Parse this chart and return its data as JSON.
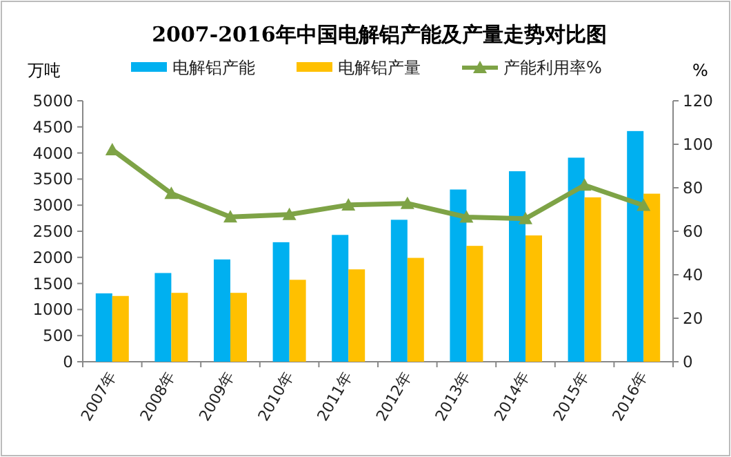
{
  "chart_data": {
    "type": "bar",
    "title": "2007-2016年中国电解铝产能及产量走势对比图",
    "ylabel": "万吨",
    "y2label": "%",
    "categories": [
      "2007年",
      "2008年",
      "2009年",
      "2010年",
      "2011年",
      "2012年",
      "2013年",
      "2014年",
      "2015年",
      "2016年"
    ],
    "series": [
      {
        "name": "电解铝产能",
        "color": "#00b0f0",
        "values": [
          1310,
          1700,
          1960,
          2290,
          2430,
          2720,
          3300,
          3650,
          3910,
          4420
        ]
      },
      {
        "name": "电解铝产量",
        "color": "#ffc000",
        "values": [
          1260,
          1320,
          1320,
          1570,
          1770,
          1990,
          2220,
          2420,
          3150,
          3220
        ]
      },
      {
        "name": "产能利用率%",
        "type": "line",
        "axis": "y2",
        "marker": "triangle",
        "color": "#7ea346",
        "values": [
          97.5,
          77.4,
          66.6,
          67.7,
          72.1,
          72.8,
          66.5,
          65.8,
          81.2,
          71.9
        ]
      }
    ],
    "ylim": [
      0,
      5000
    ],
    "yticks": [
      0,
      500,
      1000,
      1500,
      2000,
      2500,
      3000,
      3500,
      4000,
      4500,
      5000
    ],
    "y2lim": [
      0,
      120
    ],
    "y2ticks": [
      0,
      20,
      40,
      60,
      80,
      100,
      120
    ],
    "legend": "top",
    "grid": false
  }
}
